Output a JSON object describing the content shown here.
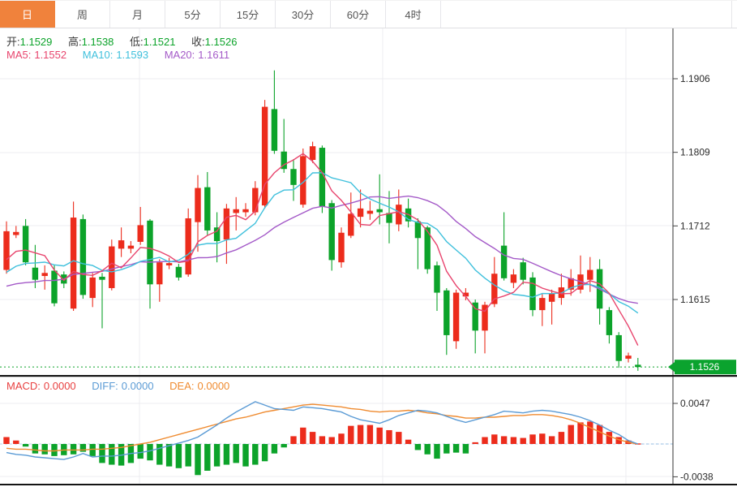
{
  "tabs": {
    "items": [
      {
        "label": "日",
        "active": true
      },
      {
        "label": "周",
        "active": false
      },
      {
        "label": "月",
        "active": false
      },
      {
        "label": "5分",
        "active": false
      },
      {
        "label": "15分",
        "active": false
      },
      {
        "label": "30分",
        "active": false
      },
      {
        "label": "60分",
        "active": false
      },
      {
        "label": "4时",
        "active": false
      }
    ]
  },
  "legend": {
    "open_label": "开:",
    "open": "1.1529",
    "high_label": "高:",
    "high": "1.1538",
    "low_label": "低:",
    "low": "1.1521",
    "close_label": "收:",
    "close": "1.1526",
    "ma5_label": "MA5:",
    "ma5": "1.1552",
    "ma10_label": "MA10:",
    "ma10": "1.1593",
    "ma20_label": "MA20:",
    "ma20": "1.1611"
  },
  "macd_legend": {
    "macd_label": "MACD:",
    "macd": "0.0000",
    "diff_label": "DIFF:",
    "diff": "0.0000",
    "dea_label": "DEA:",
    "dea": "0.0000"
  },
  "price_badge": "1.1526",
  "colors": {
    "up": "#ec2c1c",
    "down": "#0ca32a",
    "badge": "#0ba32e",
    "ma5": "#e8446d",
    "ma10": "#3fc0dc",
    "ma20": "#a45ac8",
    "diff": "#5b9bd5",
    "dea": "#ef8b30",
    "grid": "#ececf1",
    "axis": "#333333",
    "tab_active_bg": "#f0823c",
    "zero_dash": "#bed3ec",
    "divider": "#141414"
  },
  "chart_data": {
    "type": "candlestick+macd",
    "title": "",
    "x_axis_labels": [],
    "main": {
      "y_ticks": [
        {
          "label": "1.1906",
          "price": 1.1906
        },
        {
          "label": "1.1809",
          "price": 1.1809
        },
        {
          "label": "1.1712",
          "price": 1.1712
        },
        {
          "label": "1.1615",
          "price": 1.1615
        }
      ],
      "v_gridlines_x": [
        172,
        472,
        772
      ],
      "current_price": 1.1526,
      "prev_closes": [
        1.1642,
        1.163,
        1.1622,
        1.1615,
        1.1608,
        1.16,
        1.1595,
        1.1602,
        1.161,
        1.1618,
        1.1623,
        1.1628,
        1.1634,
        1.164,
        1.1645,
        1.165,
        1.1655,
        1.166,
        1.1668
      ],
      "candles": [
        [
          1.1654,
          1.1718,
          1.1649,
          1.1705
        ],
        [
          1.17,
          1.1712,
          1.1696,
          1.1704
        ],
        [
          1.1712,
          1.1721,
          1.166,
          1.1664
        ],
        [
          1.1657,
          1.1687,
          1.163,
          1.1641
        ],
        [
          1.1646,
          1.166,
          1.1628,
          1.165
        ],
        [
          1.1653,
          1.166,
          1.1606,
          1.161
        ],
        [
          1.1648,
          1.1652,
          1.163,
          1.1636
        ],
        [
          1.1603,
          1.1744,
          1.16,
          1.1723
        ],
        [
          1.1721,
          1.1727,
          1.1616,
          1.1621
        ],
        [
          1.1617,
          1.165,
          1.1605,
          1.1644
        ],
        [
          1.1645,
          1.165,
          1.1577,
          1.1641
        ],
        [
          1.163,
          1.1694,
          1.1627,
          1.1685
        ],
        [
          1.1682,
          1.171,
          1.1671,
          1.1693
        ],
        [
          1.1682,
          1.1692,
          1.1676,
          1.1686
        ],
        [
          1.1691,
          1.1737,
          1.1687,
          1.1713
        ],
        [
          1.1719,
          1.1721,
          1.1603,
          1.1635
        ],
        [
          1.1635,
          1.1668,
          1.1612,
          1.1664
        ],
        [
          1.166,
          1.167,
          1.1655,
          1.1663
        ],
        [
          1.1658,
          1.1662,
          1.164,
          1.1644
        ],
        [
          1.1648,
          1.1735,
          1.1645,
          1.1722
        ],
        [
          1.1717,
          1.1779,
          1.1678,
          1.1762
        ],
        [
          1.1763,
          1.1783,
          1.17,
          1.1706
        ],
        [
          1.171,
          1.173,
          1.1664,
          1.1692
        ],
        [
          1.1694,
          1.1741,
          1.1662,
          1.1735
        ],
        [
          1.1729,
          1.175,
          1.1706,
          1.1734
        ],
        [
          1.173,
          1.1742,
          1.1724,
          1.1734
        ],
        [
          1.173,
          1.1771,
          1.1726,
          1.1762
        ],
        [
          1.1739,
          1.1878,
          1.1735,
          1.1869
        ],
        [
          1.1866,
          1.1917,
          1.1807,
          1.1811
        ],
        [
          1.181,
          1.1853,
          1.1782,
          1.1787
        ],
        [
          1.1787,
          1.18,
          1.1745,
          1.1766
        ],
        [
          1.174,
          1.1814,
          1.1736,
          1.1804
        ],
        [
          1.1799,
          1.1823,
          1.1795,
          1.1817
        ],
        [
          1.1815,
          1.1818,
          1.1729,
          1.1737
        ],
        [
          1.1742,
          1.1746,
          1.1653,
          1.1667
        ],
        [
          1.1664,
          1.171,
          1.1657,
          1.1703
        ],
        [
          1.1699,
          1.1756,
          1.1696,
          1.1728
        ],
        [
          1.1724,
          1.176,
          1.171,
          1.1735
        ],
        [
          1.1728,
          1.1745,
          1.172,
          1.1732
        ],
        [
          1.1734,
          1.178,
          1.1714,
          1.173
        ],
        [
          1.1729,
          1.1758,
          1.1689,
          1.1716
        ],
        [
          1.1714,
          1.176,
          1.1705,
          1.174
        ],
        [
          1.1735,
          1.1748,
          1.171,
          1.1718
        ],
        [
          1.1718,
          1.1722,
          1.1655,
          1.1696
        ],
        [
          1.171,
          1.1712,
          1.1649,
          1.1655
        ],
        [
          1.166,
          1.1665,
          1.16,
          1.1624
        ],
        [
          1.1627,
          1.163,
          1.1542,
          1.1568
        ],
        [
          1.156,
          1.1628,
          1.155,
          1.1624
        ],
        [
          1.1619,
          1.163,
          1.1614,
          1.1624
        ],
        [
          1.1611,
          1.1615,
          1.1544,
          1.1574
        ],
        [
          1.1574,
          1.1612,
          1.1544,
          1.1608
        ],
        [
          1.1609,
          1.1671,
          1.1605,
          1.1649
        ],
        [
          1.1686,
          1.173,
          1.164,
          1.1643
        ],
        [
          1.1637,
          1.1655,
          1.163,
          1.1648
        ],
        [
          1.1664,
          1.167,
          1.1635,
          1.1641
        ],
        [
          1.1644,
          1.1651,
          1.1593,
          1.1601
        ],
        [
          1.1601,
          1.1622,
          1.158,
          1.1617
        ],
        [
          1.1612,
          1.1628,
          1.1582,
          1.1623
        ],
        [
          1.1617,
          1.1649,
          1.1608,
          1.1631
        ],
        [
          1.1628,
          1.1655,
          1.162,
          1.1643
        ],
        [
          1.1628,
          1.1673,
          1.1623,
          1.1648
        ],
        [
          1.1641,
          1.1671,
          1.1625,
          1.1654
        ],
        [
          1.1655,
          1.1668,
          1.1582,
          1.1603
        ],
        [
          1.1601,
          1.1605,
          1.1557,
          1.1568
        ],
        [
          1.1568,
          1.1572,
          1.1525,
          1.1534
        ],
        [
          1.1537,
          1.1545,
          1.1532,
          1.1541
        ],
        [
          1.1529,
          1.1538,
          1.1521,
          1.1526
        ]
      ]
    },
    "macd": {
      "y_ticks": [
        {
          "label": "0.0047",
          "value": 0.0047
        },
        {
          "label": "-0.0038",
          "value": -0.0038
        }
      ],
      "histogram": [
        0.0008,
        0.0004,
        -0.0003,
        -0.0011,
        -0.0012,
        -0.0014,
        -0.0013,
        -0.0012,
        -0.0009,
        -0.0014,
        -0.0022,
        -0.0024,
        -0.0025,
        -0.0022,
        -0.0017,
        -0.0019,
        -0.0024,
        -0.0026,
        -0.0028,
        -0.0026,
        -0.0036,
        -0.0031,
        -0.0026,
        -0.0024,
        -0.0022,
        -0.0026,
        -0.0024,
        -0.002,
        -0.0011,
        -0.0004,
        0.0009,
        0.0019,
        0.0014,
        0.0009,
        0.0008,
        0.0012,
        0.0021,
        0.0022,
        0.0022,
        0.0019,
        0.0016,
        0.0014,
        0.0005,
        -0.0007,
        -0.0012,
        -0.0017,
        -0.0011,
        -0.001,
        -0.0011,
        0.0002,
        0.0008,
        0.0011,
        0.0009,
        0.0008,
        0.0007,
        0.0011,
        0.0012,
        0.0009,
        0.0014,
        0.0022,
        0.0025,
        0.0026,
        0.0022,
        0.0014,
        0.0008,
        0.0004,
        0.0
      ],
      "diff": [
        -0.001,
        -0.0012,
        -0.0013,
        -0.0015,
        -0.0016,
        -0.0017,
        -0.0018,
        -0.0015,
        -0.0011,
        -0.0015,
        -0.0014,
        -0.0014,
        -0.0013,
        -0.0011,
        -0.001,
        -0.0008,
        -0.0005,
        -0.0002,
        0.0001,
        0.0004,
        0.0008,
        0.0015,
        0.0022,
        0.003,
        0.0037,
        0.0043,
        0.0049,
        0.0045,
        0.0041,
        0.004,
        0.0039,
        0.0043,
        0.0042,
        0.0041,
        0.0039,
        0.0037,
        0.0032,
        0.0028,
        0.0026,
        0.0024,
        0.0028,
        0.0033,
        0.0036,
        0.0039,
        0.0038,
        0.0036,
        0.0032,
        0.0028,
        0.0025,
        0.0028,
        0.0031,
        0.0034,
        0.0038,
        0.0037,
        0.0036,
        0.0038,
        0.0039,
        0.0038,
        0.0036,
        0.0034,
        0.0031,
        0.0027,
        0.0022,
        0.0016,
        0.0011,
        0.0004,
        0.0
      ],
      "dea": [
        -0.0005,
        -0.0006,
        -0.0006,
        -0.0007,
        -0.0008,
        -0.0008,
        -0.0007,
        -0.0007,
        -0.0007,
        -0.0006,
        -0.0006,
        -0.0005,
        -0.0004,
        -0.0002,
        0.0,
        0.0002,
        0.0005,
        0.0008,
        0.0011,
        0.0014,
        0.0017,
        0.002,
        0.0023,
        0.0026,
        0.0029,
        0.0031,
        0.0034,
        0.0037,
        0.0039,
        0.0041,
        0.0043,
        0.0045,
        0.0046,
        0.0045,
        0.0044,
        0.0043,
        0.0041,
        0.004,
        0.0038,
        0.0037,
        0.0038,
        0.0038,
        0.0039,
        0.0038,
        0.0036,
        0.0035,
        0.0033,
        0.0032,
        0.003,
        0.003,
        0.0031,
        0.0031,
        0.0032,
        0.0033,
        0.0033,
        0.0034,
        0.0034,
        0.0033,
        0.0031,
        0.0028,
        0.0024,
        0.0019,
        0.0014,
        0.0009,
        0.0005,
        0.0002,
        0.0
      ]
    }
  }
}
